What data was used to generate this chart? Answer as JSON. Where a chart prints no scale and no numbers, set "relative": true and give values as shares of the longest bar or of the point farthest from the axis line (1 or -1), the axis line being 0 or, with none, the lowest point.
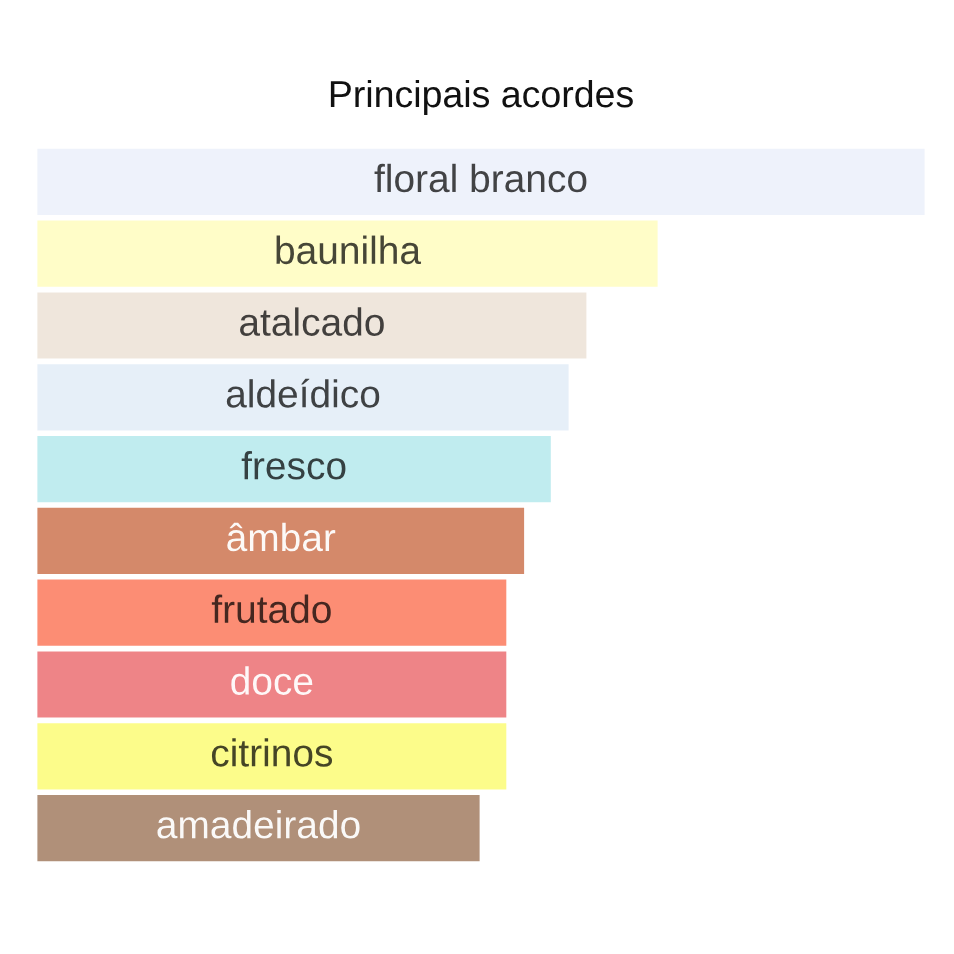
{
  "chart_data": {
    "type": "bar",
    "orientation": "horizontal",
    "relative": true,
    "title": "Principais acordes",
    "categories": [
      "floral branco",
      "baunilha",
      "atalcado",
      "aldeídico",
      "fresco",
      "âmbar",
      "frutado",
      "doce",
      "citrinos",
      "amadeirado"
    ],
    "values": [
      1,
      0.7,
      0.62,
      0.6,
      0.58,
      0.55,
      0.53,
      0.53,
      0.53,
      0.5
    ],
    "colors": [
      "#eef2fb",
      "#fffdc8",
      "#efe6dc",
      "#e6eff8",
      "#c0ecef",
      "#d4896a",
      "#fc8d74",
      "#ee8487",
      "#fcfc8a",
      "#b09079"
    ]
  }
}
